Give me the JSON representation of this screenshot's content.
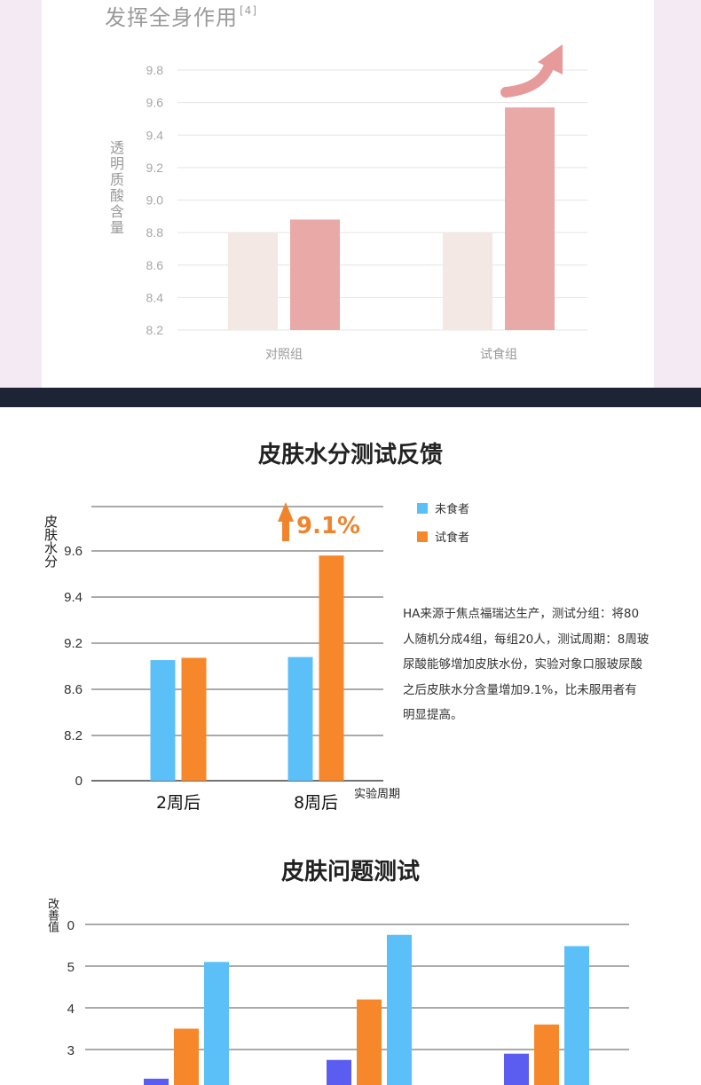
{
  "chart_data": [
    {
      "type": "bar",
      "title": "发挥全身作用",
      "title_ref": "[4]",
      "ylabel": "透明质酸含量",
      "ylim": [
        8.2,
        9.8
      ],
      "yticks": [
        "9.8",
        "9.6",
        "9.4",
        "9.2",
        "9.0",
        "8.8",
        "8.6",
        "8.4",
        "8.2"
      ],
      "categories": [
        "对照组",
        "试食组"
      ],
      "series": [
        {
          "values": [
            8.8,
            8.8
          ],
          "color": "#f3e8e4"
        },
        {
          "values": [
            8.88,
            9.57
          ],
          "color": "#e8a9a7"
        }
      ],
      "grid": true
    },
    {
      "type": "bar",
      "title": "皮肤水分测试反馈",
      "ylabel": "皮肤水分",
      "xlabel": "实验周期",
      "yticks": [
        "9.6",
        "9.4",
        "9.2",
        "8.6",
        "8.2",
        "0"
      ],
      "categories": [
        "2周后",
        "8周后"
      ],
      "series": [
        {
          "name": "未食者",
          "values": [
            8.98,
            9.02
          ],
          "color": "#5bc0f8"
        },
        {
          "name": "试食者",
          "values": [
            9.01,
            9.58
          ],
          "color": "#f7872b"
        }
      ],
      "annotation": "9.1%",
      "legend": "right",
      "grid": true
    },
    {
      "type": "bar",
      "title": "皮肤问题测试",
      "ylabel": "改善值",
      "yticks": [
        "0",
        "5",
        "4",
        "3"
      ],
      "groups": 3,
      "series": [
        {
          "values": [
            2.3,
            2.75,
            2.9
          ],
          "color": "#5b5cf0"
        },
        {
          "values": [
            3.5,
            4.2,
            3.6
          ],
          "color": "#f7872b"
        },
        {
          "values": [
            5.1,
            5.75,
            5.48
          ],
          "color": "#5bc0f8"
        }
      ],
      "grid": true
    }
  ],
  "note": "HA来源于焦点福瑞达生产，测试分组：将80人随机分成4组，每组20人，测试周期：8周玻尿酸能够增加皮肤水份，实验对象口服玻尿酸之后皮肤水分含量增加9.1%，比未服用者有明显提高。",
  "note_lines": [
    "HA来源于焦点福瑞达生产，测试分组：将80",
    "人随机分成4组，每组20人，测试周期：8周玻",
    "尿酸能够增加皮肤水份，实验对象口服玻尿酸",
    "之后皮肤水分含量增加9.1%，比未服用者有",
    "明显提高。"
  ],
  "colors": {
    "panel_bg": "#f4eaf3",
    "divider": "#1c2436",
    "pink": "#e8a9a7",
    "beige": "#f3e8e4",
    "blue": "#5bc0f8",
    "orange": "#f7872b",
    "indigo": "#5b5cf0"
  }
}
